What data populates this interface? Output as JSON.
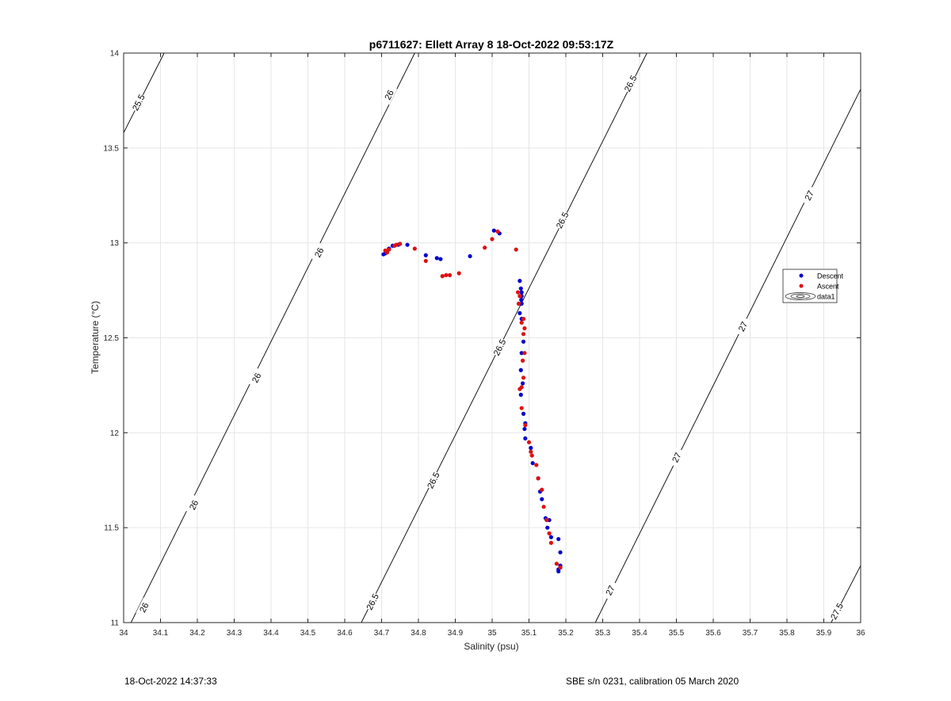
{
  "chart_data": {
    "type": "scatter",
    "title": "p6711627: Ellett Array 8 18-Oct-2022 09:53:17Z",
    "xlabel": "Salinity (psu)",
    "ylabel": "Temperature (°C)",
    "xlim": [
      34,
      36
    ],
    "ylim": [
      11,
      14
    ],
    "xticks": [
      34,
      34.1,
      34.2,
      34.3,
      34.4,
      34.5,
      34.6,
      34.7,
      34.8,
      34.9,
      35,
      35.1,
      35.2,
      35.3,
      35.4,
      35.5,
      35.6,
      35.7,
      35.8,
      35.9,
      36
    ],
    "xtick_labels": [
      "34",
      "34.1",
      "34.2",
      "34.3",
      "34.4",
      "34.5",
      "34.6",
      "34.7",
      "34.8",
      "34.9",
      "35",
      "35.1",
      "35.2",
      "35.3",
      "35.4",
      "35.5",
      "35.6",
      "35.7",
      "35.8",
      "35.9",
      "36"
    ],
    "yticks": [
      11,
      11.5,
      12,
      12.5,
      13,
      13.5,
      14
    ],
    "ytick_labels": [
      "11",
      "11.5",
      "12",
      "12.5",
      "13",
      "13.5",
      "14"
    ],
    "grid": true,
    "legend_position": "right",
    "legend": [
      "Descent",
      "Ascent",
      "data1"
    ],
    "series": [
      {
        "name": "Descent",
        "color": "#0000cc",
        "points": [
          [
            34.705,
            12.94
          ],
          [
            34.71,
            12.945
          ],
          [
            34.715,
            12.95
          ],
          [
            34.72,
            12.97
          ],
          [
            34.73,
            12.985
          ],
          [
            34.745,
            12.99
          ],
          [
            34.77,
            12.99
          ],
          [
            34.82,
            12.935
          ],
          [
            34.85,
            12.92
          ],
          [
            34.86,
            12.915
          ],
          [
            34.94,
            12.93
          ],
          [
            35.005,
            13.065
          ],
          [
            35.02,
            13.05
          ],
          [
            35.075,
            12.8
          ],
          [
            35.078,
            12.76
          ],
          [
            35.08,
            12.74
          ],
          [
            35.08,
            12.72
          ],
          [
            35.079,
            12.7
          ],
          [
            35.08,
            12.68
          ],
          [
            35.075,
            12.63
          ],
          [
            35.08,
            12.6
          ],
          [
            35.085,
            12.48
          ],
          [
            35.08,
            12.42
          ],
          [
            35.078,
            12.33
          ],
          [
            35.083,
            12.26
          ],
          [
            35.078,
            12.2
          ],
          [
            35.085,
            12.1
          ],
          [
            35.09,
            12.05
          ],
          [
            35.088,
            12.02
          ],
          [
            35.09,
            11.97
          ],
          [
            35.105,
            11.92
          ],
          [
            35.11,
            11.84
          ],
          [
            35.125,
            11.76
          ],
          [
            35.13,
            11.69
          ],
          [
            35.135,
            11.65
          ],
          [
            35.145,
            11.55
          ],
          [
            35.155,
            11.54
          ],
          [
            35.15,
            11.5
          ],
          [
            35.16,
            11.45
          ],
          [
            35.18,
            11.44
          ],
          [
            35.185,
            11.37
          ],
          [
            35.185,
            11.3
          ],
          [
            35.18,
            11.28
          ],
          [
            35.18,
            11.27
          ]
        ]
      },
      {
        "name": "Ascent",
        "color": "#dd1111",
        "points": [
          [
            34.71,
            12.96
          ],
          [
            34.715,
            12.95
          ],
          [
            34.72,
            12.965
          ],
          [
            34.735,
            12.985
          ],
          [
            34.74,
            12.99
          ],
          [
            34.75,
            12.995
          ],
          [
            34.79,
            12.97
          ],
          [
            34.82,
            12.905
          ],
          [
            34.865,
            12.825
          ],
          [
            34.875,
            12.83
          ],
          [
            34.885,
            12.83
          ],
          [
            34.91,
            12.84
          ],
          [
            34.98,
            12.975
          ],
          [
            35.0,
            13.02
          ],
          [
            35.015,
            13.06
          ],
          [
            35.065,
            12.965
          ],
          [
            35.07,
            12.74
          ],
          [
            35.075,
            12.72
          ],
          [
            35.072,
            12.68
          ],
          [
            35.085,
            12.6
          ],
          [
            35.08,
            12.58
          ],
          [
            35.088,
            12.55
          ],
          [
            35.085,
            12.52
          ],
          [
            35.088,
            12.42
          ],
          [
            35.083,
            12.38
          ],
          [
            35.085,
            12.29
          ],
          [
            35.08,
            12.24
          ],
          [
            35.075,
            12.23
          ],
          [
            35.08,
            12.13
          ],
          [
            35.09,
            12.04
          ],
          [
            35.1,
            11.95
          ],
          [
            35.105,
            11.9
          ],
          [
            35.108,
            11.88
          ],
          [
            35.12,
            11.83
          ],
          [
            35.125,
            11.76
          ],
          [
            35.135,
            11.7
          ],
          [
            35.14,
            11.61
          ],
          [
            35.148,
            11.54
          ],
          [
            35.155,
            11.47
          ],
          [
            35.16,
            11.42
          ],
          [
            35.175,
            11.31
          ],
          [
            35.185,
            11.29
          ]
        ]
      }
    ],
    "contours": [
      {
        "label": "25.5",
        "x0": 34.0,
        "y0": 13.58,
        "x1": 34.11,
        "y1": 14.0,
        "labels_at": [
          [
            34.04,
            13.74
          ]
        ]
      },
      {
        "label": "26",
        "x0": 34.02,
        "y0": 11.0,
        "x1": 34.79,
        "y1": 14.0,
        "labels_at": [
          [
            34.055,
            11.08
          ],
          [
            34.19,
            11.62
          ],
          [
            34.36,
            12.29
          ],
          [
            34.53,
            12.95
          ],
          [
            34.72,
            13.78
          ]
        ]
      },
      {
        "label": "26.5",
        "x0": 34.645,
        "y0": 11.0,
        "x1": 35.42,
        "y1": 14.0,
        "labels_at": [
          [
            34.675,
            11.11
          ],
          [
            34.84,
            11.75
          ],
          [
            35.02,
            12.45
          ],
          [
            35.19,
            13.12
          ],
          [
            35.375,
            13.84
          ]
        ]
      },
      {
        "label": "27",
        "x0": 35.28,
        "y0": 11.0,
        "x1": 36.0,
        "y1": 13.81,
        "labels_at": [
          [
            35.32,
            11.17
          ],
          [
            35.5,
            11.87
          ],
          [
            35.68,
            12.56
          ],
          [
            35.86,
            13.25
          ]
        ]
      },
      {
        "label": "27.5",
        "x0": 35.92,
        "y0": 11.0,
        "x1": 36.0,
        "y1": 11.3,
        "labels_at": [
          [
            35.935,
            11.06
          ]
        ]
      }
    ]
  },
  "footer": {
    "left": "18-Oct-2022 14:37:33",
    "right": "SBE s/n 0231, calibration 05 March 2020"
  }
}
